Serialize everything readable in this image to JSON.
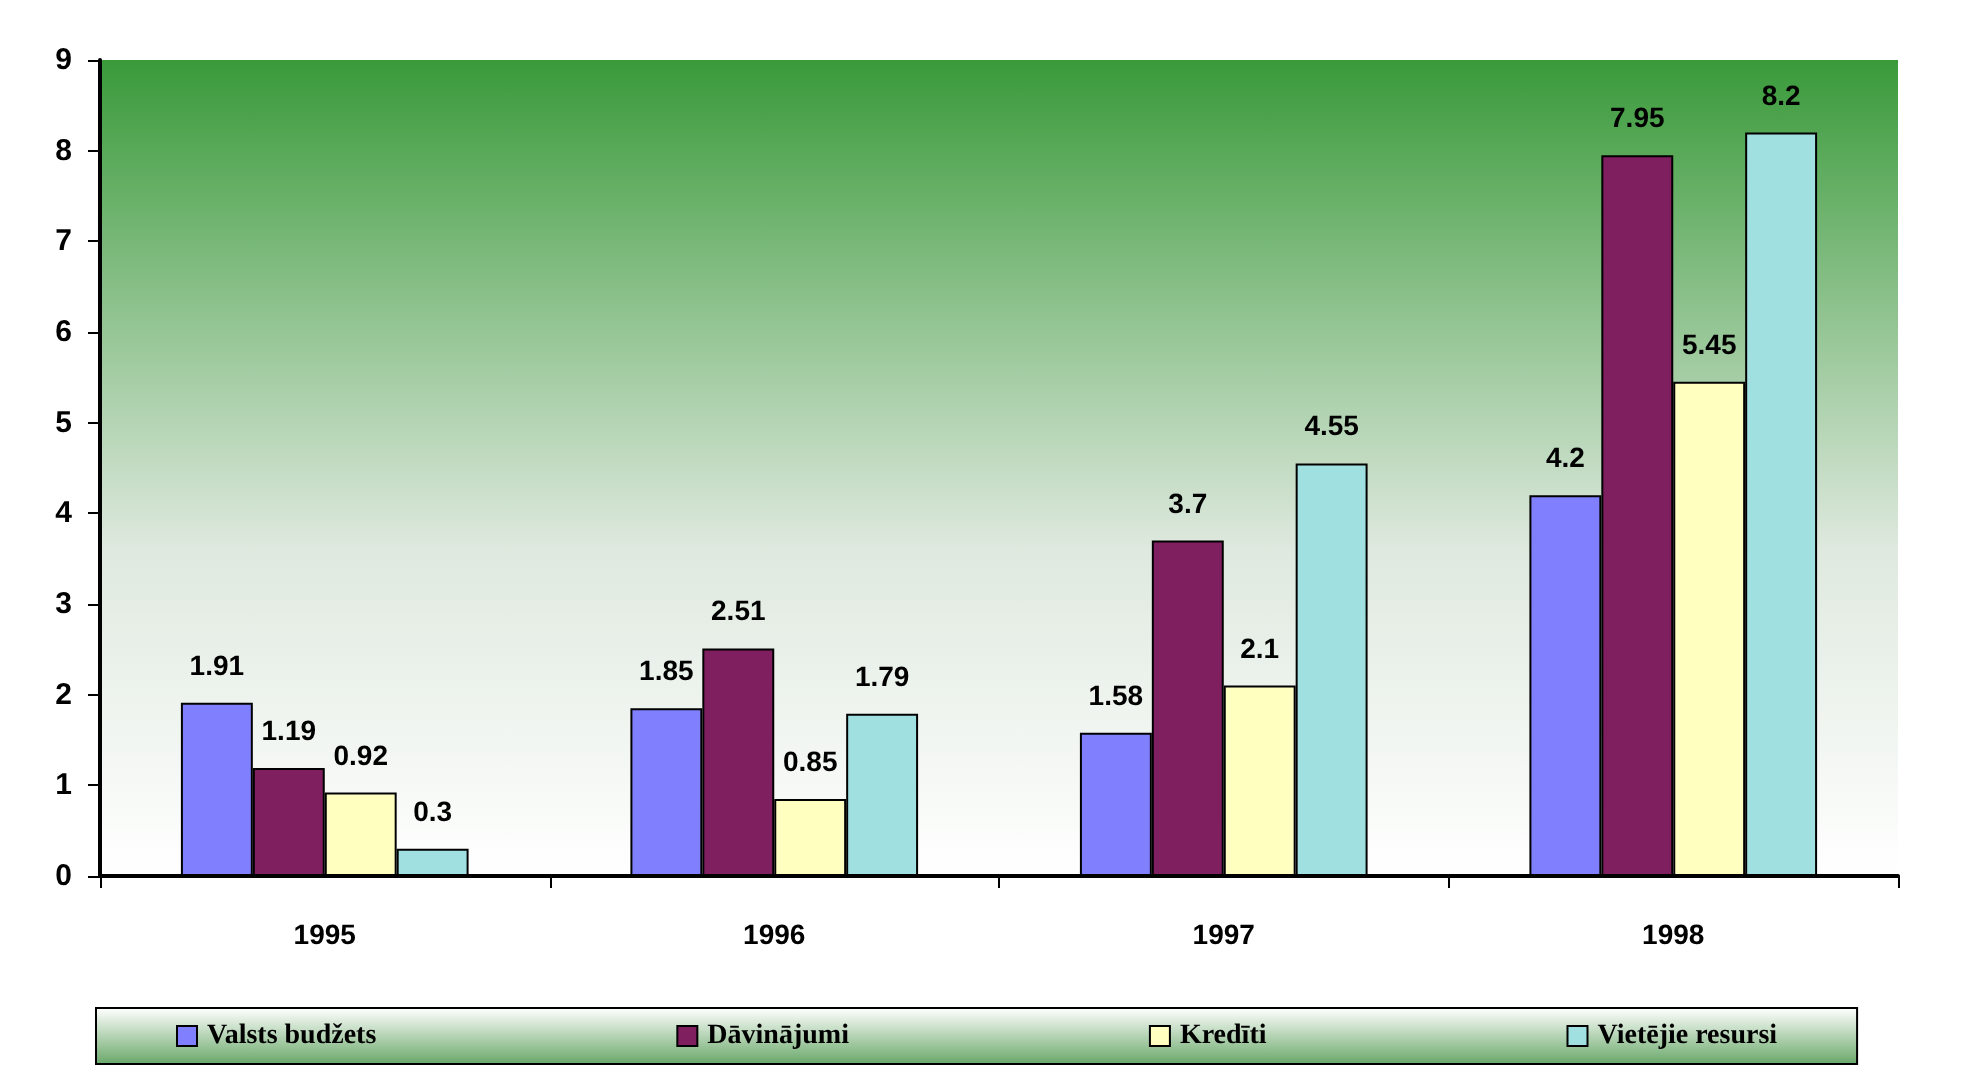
{
  "chart_data": {
    "type": "bar",
    "categories": [
      "1995",
      "1996",
      "1997",
      "1998"
    ],
    "series": [
      {
        "name": "Valsts budžets",
        "color": "#8080ff",
        "values": [
          1.91,
          1.85,
          1.58,
          4.2
        ]
      },
      {
        "name": "Dāvinājumi",
        "color": "#7f1f5f",
        "values": [
          1.19,
          2.51,
          3.7,
          7.95
        ]
      },
      {
        "name": "Kredīti",
        "color": "#ffffc0",
        "values": [
          0.92,
          0.85,
          2.1,
          5.45
        ]
      },
      {
        "name": "Vietējie resursi",
        "color": "#a0e0e0",
        "values": [
          0.3,
          1.79,
          4.55,
          8.2
        ]
      }
    ],
    "ylim": [
      0,
      9
    ],
    "yticks": [
      0,
      1,
      2,
      3,
      4,
      5,
      6,
      7,
      8,
      9
    ],
    "grid": false,
    "legend": "bottom",
    "data_labels": true
  }
}
